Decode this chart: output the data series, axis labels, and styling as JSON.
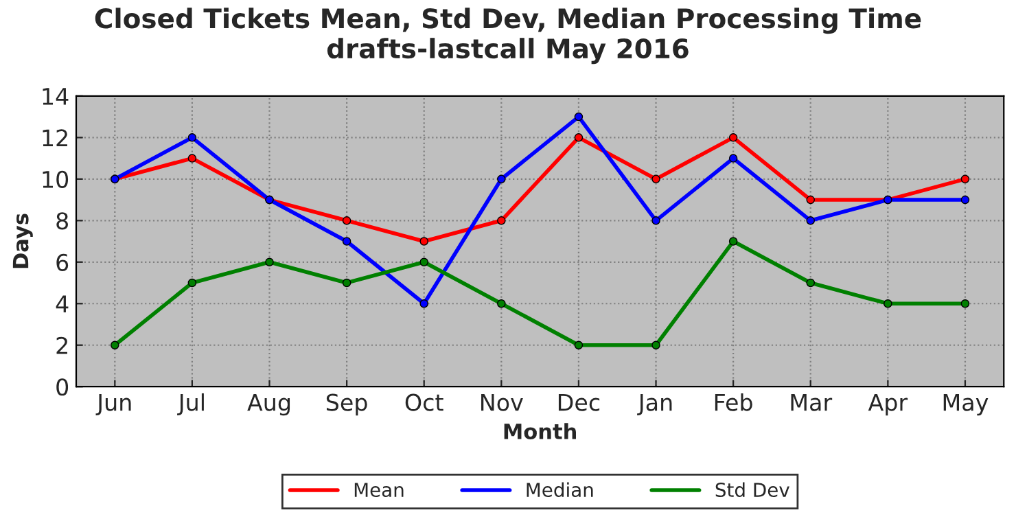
{
  "chart_data": {
    "type": "line",
    "title": "Closed Tickets Mean, Std Dev, Median Processing Time\ndrafts-lastcall May 2016",
    "xlabel": "Month",
    "ylabel": "Days",
    "categories": [
      "Jun",
      "Jul",
      "Aug",
      "Sep",
      "Oct",
      "Nov",
      "Dec",
      "Jan",
      "Feb",
      "Mar",
      "Apr",
      "May"
    ],
    "series": [
      {
        "name": "Mean",
        "color": "#ff0000",
        "values": [
          10,
          11,
          9,
          8,
          7,
          8,
          12,
          10,
          12,
          9,
          9,
          10
        ]
      },
      {
        "name": "Median",
        "color": "#0000ff",
        "values": [
          10,
          12,
          9,
          7,
          4,
          10,
          13,
          8,
          11,
          8,
          9,
          9
        ]
      },
      {
        "name": "Std Dev",
        "color": "#008000",
        "values": [
          2,
          5,
          6,
          5,
          6,
          4,
          2,
          2,
          7,
          5,
          4,
          4
        ]
      }
    ],
    "ylim": [
      0,
      14
    ],
    "yticks": [
      0,
      2,
      4,
      6,
      8,
      10,
      12,
      14
    ],
    "grid": true,
    "legend": "bottom",
    "marker": "circle",
    "line_style": "solid"
  }
}
